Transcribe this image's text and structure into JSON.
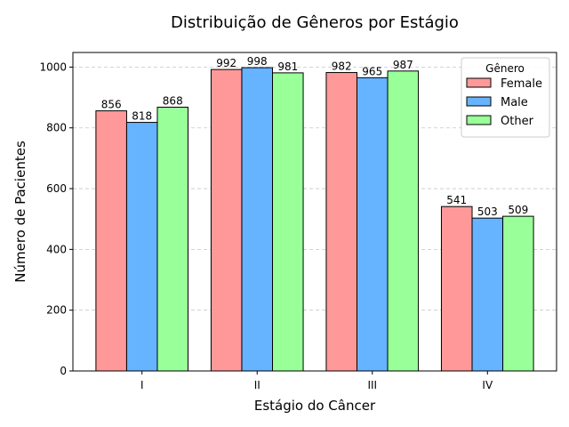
{
  "chart_data": {
    "type": "bar",
    "title": "Distribuição de Gêneros por Estágio",
    "xlabel": "Estágio do Câncer",
    "ylabel": "Número de Pacientes",
    "categories": [
      "I",
      "II",
      "III",
      "IV"
    ],
    "series": [
      {
        "name": "Female",
        "color": "#ff9999",
        "values": [
          856,
          992,
          982,
          541
        ]
      },
      {
        "name": "Male",
        "color": "#66b3ff",
        "values": [
          818,
          998,
          965,
          503
        ]
      },
      {
        "name": "Other",
        "color": "#99ff99",
        "values": [
          868,
          981,
          987,
          509
        ]
      }
    ],
    "ylim": [
      0,
      1048
    ],
    "yticks": [
      0,
      200,
      400,
      600,
      800,
      1000
    ],
    "grid": "y-dashed",
    "legend": {
      "title": "Gênero",
      "placement": "top-right"
    },
    "data_labels": true
  }
}
